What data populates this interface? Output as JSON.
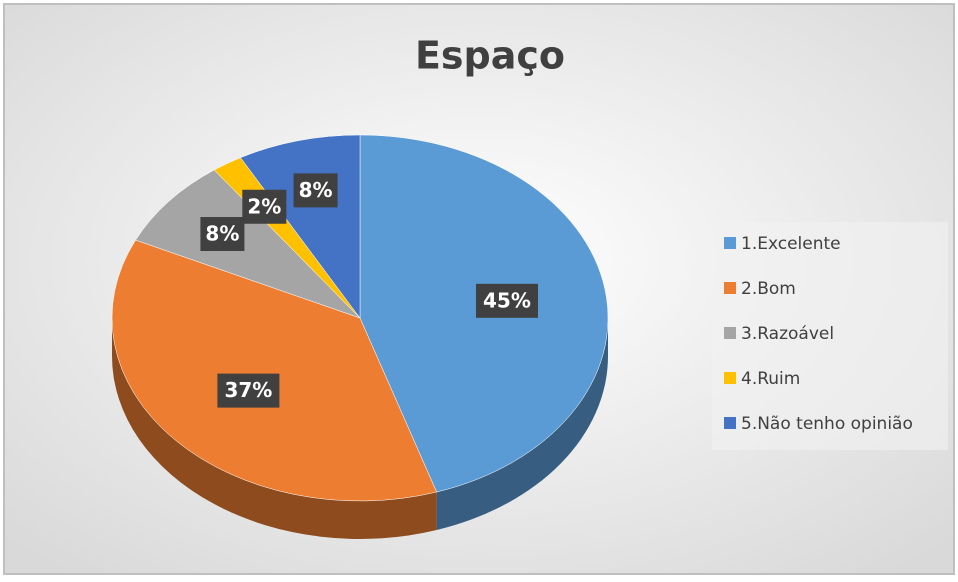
{
  "chart_data": {
    "type": "pie",
    "title": "Espaço",
    "categories": [
      "1.Excelente",
      "2.Bom",
      "3.Razoável",
      "4.Ruim",
      "5.Não tenho opinião"
    ],
    "values": [
      45,
      37,
      8,
      2,
      8
    ],
    "value_labels": [
      "45%",
      "37%",
      "8%",
      "2%",
      "8%"
    ],
    "colors": [
      "#5b9bd5",
      "#ed7d31",
      "#a5a5a5",
      "#ffc000",
      "#4472c4"
    ],
    "legend": "right"
  }
}
